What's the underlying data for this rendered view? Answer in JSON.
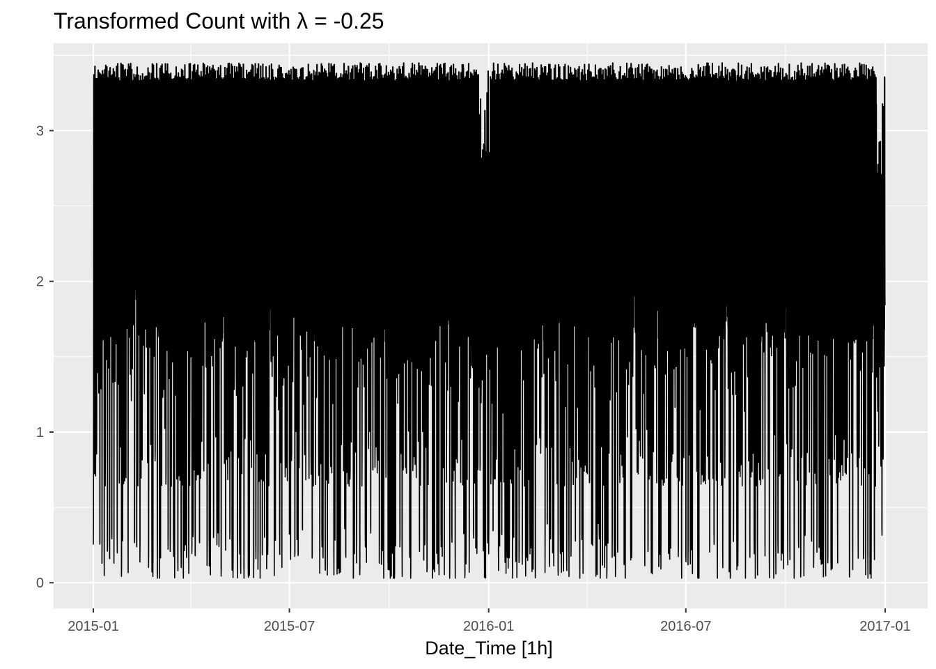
{
  "chart_data": {
    "type": "line",
    "title": "Transformed Count with λ = -0.25",
    "xlabel": "Date_Time [1h]",
    "ylabel": "",
    "x_range": [
      "2015-01-01",
      "2017-01-01"
    ],
    "x_ticks": [
      "2015-01",
      "2015-07",
      "2016-01",
      "2016-07",
      "2017-01"
    ],
    "x_minor_ticks": [
      "2015-04",
      "2015-10",
      "2016-04",
      "2016-10"
    ],
    "ylim": [
      -0.17,
      3.58
    ],
    "y_ticks": [
      0,
      1,
      2,
      3
    ],
    "y_tick_labels": [
      "0",
      "1",
      "2",
      "3"
    ],
    "grid": true,
    "legend": "none",
    "series_summary": {
      "typical_daily_max": 3.45,
      "typical_daily_min": 0.64,
      "overnight_zero_value": 0,
      "dense_band": [
        1.6,
        3.0
      ],
      "year_end_dip_max": 2.65
    },
    "colors": {
      "panel_background": "#ebebeb",
      "gridline": "#ffffff",
      "series": "#000000",
      "tick_text": "#4d4d4d"
    }
  }
}
